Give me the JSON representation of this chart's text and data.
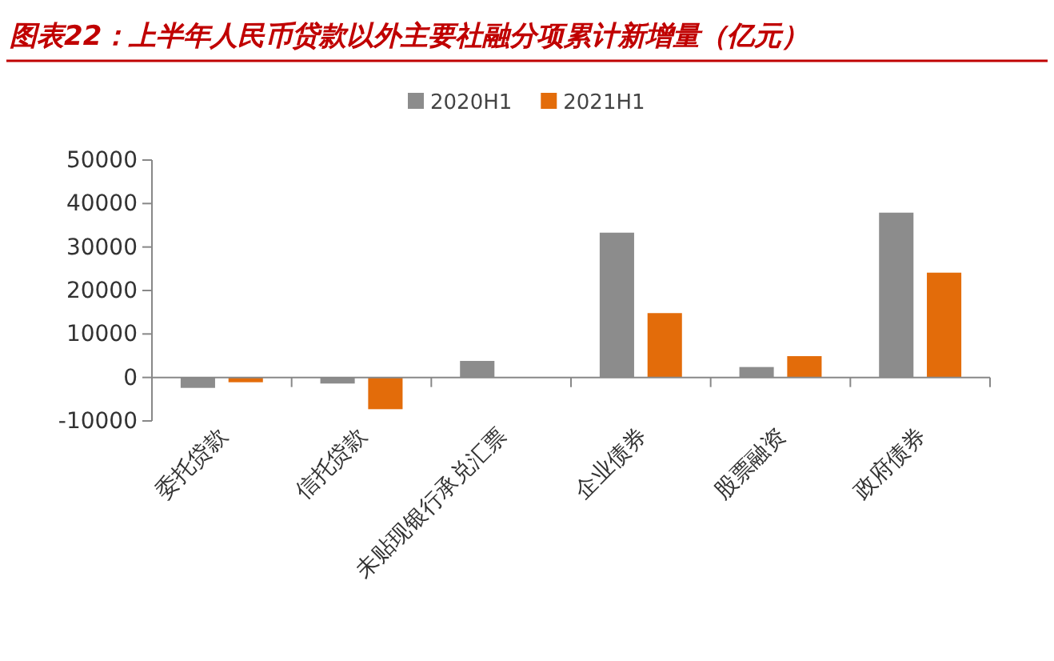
{
  "chart_data": {
    "type": "bar",
    "title": "图表22：上半年人民币贷款以外主要社融分项累计新增量（亿元）",
    "categories": [
      "委托贷款",
      "信托贷款",
      "未贴现银行承兑汇票",
      "企业债券",
      "股票融资",
      "政府债券"
    ],
    "series": [
      {
        "name": "2020H1",
        "color": "#8c8c8c",
        "values": [
          -2400,
          -1400,
          3800,
          33300,
          2400,
          37900
        ]
      },
      {
        "name": "2021H1",
        "color": "#e36c0a",
        "values": [
          -1100,
          -7300,
          0,
          14800,
          4900,
          24100
        ]
      }
    ],
    "ylim": [
      -10000,
      50000
    ],
    "yticks": [
      -10000,
      0,
      10000,
      20000,
      30000,
      40000,
      50000
    ],
    "grid": false,
    "legend": "top"
  }
}
